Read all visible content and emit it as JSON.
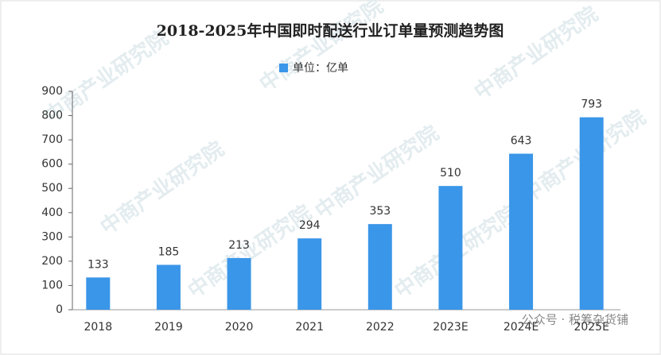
{
  "chart_data": {
    "type": "bar",
    "title": "2018-2025年中国即时配送行业订单量预测趋势图",
    "legend_label": "单位：亿单",
    "categories": [
      "2018",
      "2019",
      "2020",
      "2021",
      "2022",
      "2023E",
      "2024E",
      "2025E"
    ],
    "values": [
      133,
      185,
      213,
      294,
      353,
      510,
      643,
      793
    ],
    "color": "#3a96e8",
    "ylim": [
      0,
      900
    ],
    "yticks": [
      0,
      100,
      200,
      300,
      400,
      500,
      600,
      700,
      800,
      900
    ],
    "watermark": "中商产业研究院",
    "source_watermark": "公众号 · 税筹杂货铺"
  }
}
